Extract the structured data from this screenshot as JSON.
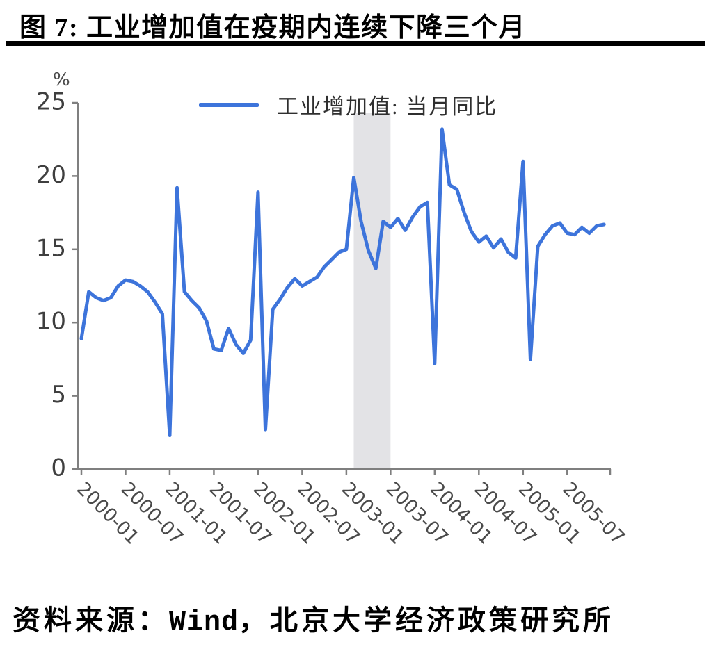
{
  "figure": {
    "title": "图 7: 工业增加值在疫期内连续下降三个月",
    "source": {
      "prefix": "资料来源：",
      "vendor": "Wind",
      "suffix": "，北京大学经济政策研究所"
    }
  },
  "chart_data": {
    "type": "line",
    "title": "",
    "xlabel": "",
    "ylabel": "%",
    "ylim": [
      0,
      25
    ],
    "yticks": [
      0,
      5,
      10,
      15,
      20,
      25
    ],
    "xticks": [
      "2000-01",
      "2000-07",
      "2001-01",
      "2001-07",
      "2002-01",
      "2002-07",
      "2003-01",
      "2003-07",
      "2004-01",
      "2004-07",
      "2005-01",
      "2005-07"
    ],
    "grid": false,
    "legend_position": "top-center",
    "legend_label": "工业增加值: 当月同比",
    "line_color": "#3D74DB",
    "axis_color": "#7f7f7f",
    "tick_label_color": "#4a4a4a",
    "shaded_band": {
      "start": "2003-02",
      "end": "2003-07",
      "color": "#E3E3E6"
    },
    "x": [
      "2000-01",
      "2000-02",
      "2000-03",
      "2000-04",
      "2000-05",
      "2000-06",
      "2000-07",
      "2000-08",
      "2000-09",
      "2000-10",
      "2000-11",
      "2000-12",
      "2001-01",
      "2001-02",
      "2001-03",
      "2001-04",
      "2001-05",
      "2001-06",
      "2001-07",
      "2001-08",
      "2001-09",
      "2001-10",
      "2001-11",
      "2001-12",
      "2002-01",
      "2002-02",
      "2002-03",
      "2002-04",
      "2002-05",
      "2002-06",
      "2002-07",
      "2002-08",
      "2002-09",
      "2002-10",
      "2002-11",
      "2002-12",
      "2003-01",
      "2003-02",
      "2003-03",
      "2003-04",
      "2003-05",
      "2003-06",
      "2003-07",
      "2003-08",
      "2003-09",
      "2003-10",
      "2003-11",
      "2003-12",
      "2004-01",
      "2004-02",
      "2004-03",
      "2004-04",
      "2004-05",
      "2004-06",
      "2004-07",
      "2004-08",
      "2004-09",
      "2004-10",
      "2004-11",
      "2004-12",
      "2005-01",
      "2005-02",
      "2005-03",
      "2005-04",
      "2005-05",
      "2005-06",
      "2005-07",
      "2005-08",
      "2005-09",
      "2005-10",
      "2005-11",
      "2005-12"
    ],
    "series": [
      {
        "name": "工业增加值: 当月同比",
        "values": [
          8.9,
          12.1,
          11.7,
          11.5,
          11.7,
          12.5,
          12.9,
          12.8,
          12.5,
          12.1,
          11.4,
          10.6,
          2.3,
          19.2,
          12.1,
          11.5,
          11.0,
          10.1,
          8.2,
          8.1,
          9.6,
          8.5,
          7.9,
          8.8,
          18.9,
          2.7,
          10.9,
          11.6,
          12.4,
          13.0,
          12.5,
          12.8,
          13.1,
          13.8,
          14.3,
          14.8,
          15.0,
          19.9,
          16.9,
          14.9,
          13.7,
          16.9,
          16.5,
          17.1,
          16.3,
          17.2,
          17.9,
          18.2,
          7.2,
          23.2,
          19.4,
          19.1,
          17.5,
          16.2,
          15.5,
          15.9,
          15.1,
          15.7,
          14.8,
          14.4,
          21.0,
          7.5,
          15.2,
          16.0,
          16.6,
          16.8,
          16.1,
          16.0,
          16.5,
          16.1,
          16.6,
          16.7
        ]
      }
    ]
  }
}
